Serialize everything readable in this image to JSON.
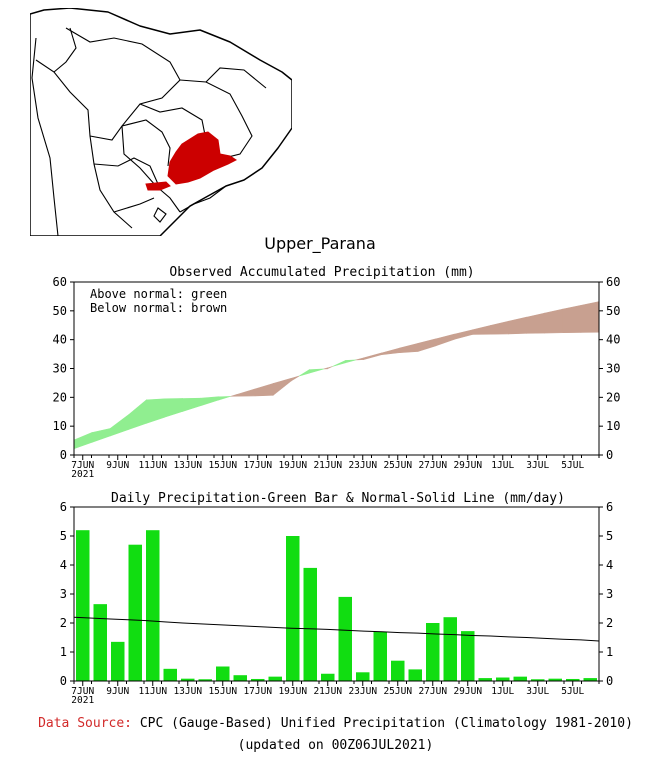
{
  "region_title": "Upper_Parana",
  "map": {
    "region_color": "#cc0000",
    "outline_color": "#000000"
  },
  "colors": {
    "above": "#90ee90",
    "below": "#c8a090",
    "bar": "#11dd11",
    "normal_line": "#000000"
  },
  "chart_data": [
    {
      "type": "area",
      "title": "Observed Accumulated Precipitation (mm)",
      "legend": [
        "Above normal: green",
        "Below normal: brown"
      ],
      "ylim": [
        0,
        60
      ],
      "yticks": [
        0,
        10,
        20,
        30,
        40,
        50,
        60
      ],
      "x_ticks": [
        "7JUN",
        "9JUN",
        "11JUN",
        "13JUN",
        "15JUN",
        "17JUN",
        "19JUN",
        "21JUN",
        "23JUN",
        "25JUN",
        "27JUN",
        "29JUN",
        "1JUL",
        "3JUL",
        "5JUL"
      ],
      "x_year_label": "2021",
      "x_days": [
        "7JUN",
        "8JUN",
        "9JUN",
        "10JUN",
        "11JUN",
        "12JUN",
        "13JUN",
        "14JUN",
        "15JUN",
        "16JUN",
        "17JUN",
        "18JUN",
        "19JUN",
        "20JUN",
        "21JUN",
        "22JUN",
        "23JUN",
        "24JUN",
        "25JUN",
        "26JUN",
        "27JUN",
        "28JUN",
        "29JUN",
        "30JUN",
        "1JUL",
        "2JUL",
        "3JUL",
        "4JUL",
        "5JUL",
        "6JUL"
      ],
      "series": [
        {
          "name": "Observed",
          "values": [
            5.2,
            7.8,
            9.2,
            13.9,
            19.1,
            19.5,
            19.6,
            19.7,
            20.2,
            20.4,
            20.5,
            20.7,
            25.7,
            29.6,
            29.9,
            32.8,
            33.1,
            34.8,
            35.5,
            35.9,
            37.9,
            40.1,
            41.8,
            41.9,
            42.0,
            42.2,
            42.3,
            42.4,
            42.5,
            42.6
          ]
        },
        {
          "name": "Normal",
          "values": [
            2.2,
            4.4,
            6.6,
            8.8,
            11.0,
            13.1,
            15.1,
            17.1,
            19.1,
            21.0,
            22.9,
            24.8,
            26.6,
            28.4,
            30.2,
            32.0,
            33.7,
            35.4,
            37.1,
            38.7,
            40.3,
            41.9,
            43.4,
            44.9,
            46.4,
            47.8,
            49.2,
            50.6,
            51.9,
            53.2
          ]
        }
      ]
    },
    {
      "type": "bar",
      "title": "Daily Precipitation-Green Bar & Normal-Solid Line (mm/day)",
      "ylim": [
        0,
        6
      ],
      "yticks": [
        0,
        1,
        2,
        3,
        4,
        5,
        6
      ],
      "x_ticks": [
        "7JUN",
        "9JUN",
        "11JUN",
        "13JUN",
        "15JUN",
        "17JUN",
        "19JUN",
        "21JUN",
        "23JUN",
        "25JUN",
        "27JUN",
        "29JUN",
        "1JUL",
        "3JUL",
        "5JUL"
      ],
      "x_year_label": "2021",
      "categories": [
        "7JUN",
        "8JUN",
        "9JUN",
        "10JUN",
        "11JUN",
        "12JUN",
        "13JUN",
        "14JUN",
        "15JUN",
        "16JUN",
        "17JUN",
        "18JUN",
        "19JUN",
        "20JUN",
        "21JUN",
        "22JUN",
        "23JUN",
        "24JUN",
        "25JUN",
        "26JUN",
        "27JUN",
        "28JUN",
        "29JUN",
        "30JUN",
        "1JUL",
        "2JUL",
        "3JUL",
        "4JUL",
        "5JUL",
        "6JUL"
      ],
      "series": [
        {
          "name": "Daily Precipitation",
          "values": [
            5.2,
            2.65,
            1.35,
            4.7,
            5.2,
            0.42,
            0.08,
            0.06,
            0.5,
            0.2,
            0.07,
            0.15,
            5.0,
            3.9,
            0.25,
            2.9,
            0.3,
            1.7,
            0.7,
            0.4,
            2.0,
            2.2,
            1.72,
            0.1,
            0.12,
            0.15,
            0.06,
            0.08,
            0.07,
            0.1
          ]
        },
        {
          "name": "Normal",
          "values": [
            2.2,
            2.17,
            2.14,
            2.11,
            2.08,
            2.04,
            2.0,
            1.97,
            1.94,
            1.91,
            1.88,
            1.85,
            1.82,
            1.8,
            1.78,
            1.75,
            1.72,
            1.7,
            1.67,
            1.65,
            1.62,
            1.6,
            1.57,
            1.55,
            1.52,
            1.5,
            1.47,
            1.44,
            1.42,
            1.38
          ]
        }
      ]
    }
  ],
  "footer": {
    "source_label": "Data Source:",
    "source_text": "CPC (Gauge-Based) Unified Precipitation (Climatology 1981-2010)",
    "updated": "(updated on 00Z06JUL2021)"
  }
}
